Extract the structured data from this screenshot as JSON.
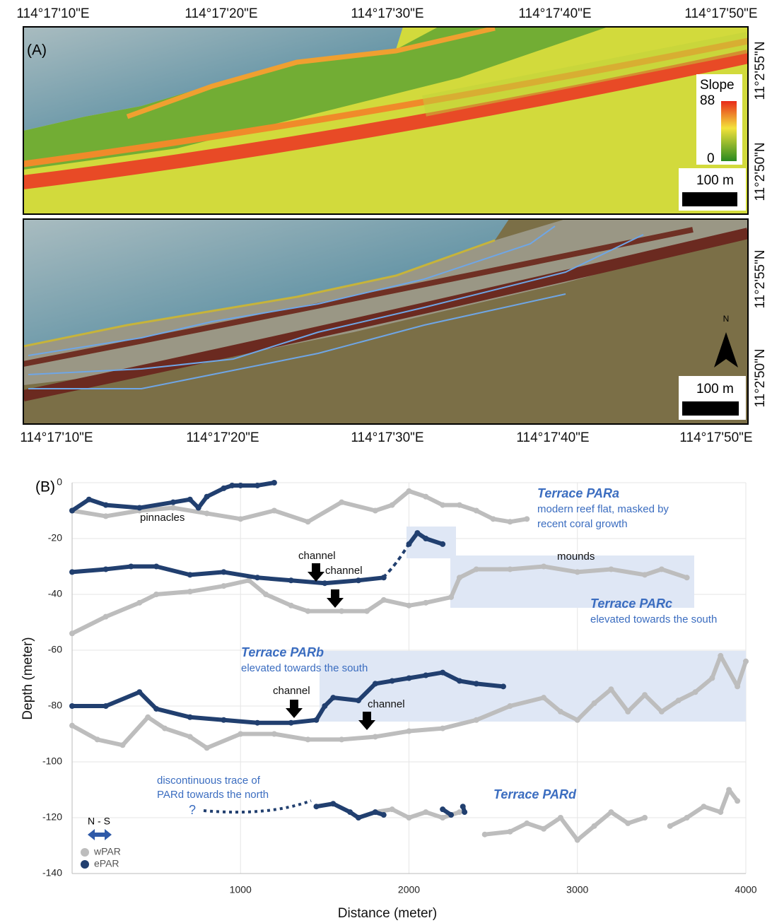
{
  "map": {
    "label": "(A)",
    "longitudes": [
      "114°17'10\"E",
      "114°17'20\"E",
      "114°17'30\"E",
      "114°17'40\"E",
      "114°17'50\"E"
    ],
    "latitudes": [
      "11°2'55\"N",
      "11°2'50\"N"
    ],
    "slope_title": "Slope",
    "slope_max": 88,
    "slope_min": 0,
    "scale": "100 m",
    "north": "N"
  },
  "chart_data": {
    "type": "line",
    "label": "(B)",
    "x_label": "Distance (meter)",
    "y_label": "Depth (meter)",
    "xlim": [
      0,
      4000
    ],
    "xticks": [
      1000,
      2000,
      3000,
      4000
    ],
    "ylim": [
      -140,
      0
    ],
    "yticks": [
      0,
      -20,
      -40,
      -60,
      -80,
      -100,
      -120,
      -140
    ],
    "grid": true,
    "direction": "N - S",
    "annotations": [
      "pinnacles",
      "channel",
      "channel",
      "channel",
      "channel",
      "mounds",
      "Terrace PARa",
      "modern reef flat, masked by",
      "recent coral growth",
      "Terrace PARc",
      "elevated towards the south",
      "Terrace PARb",
      "elevated towards the south",
      "discontinuous trace of",
      "PARd towards the north",
      "?",
      "Terrace PARd"
    ],
    "series": [
      {
        "name": "wPAR",
        "color": "#bdbdbd",
        "x": [
          0,
          200,
          400,
          600,
          800,
          1000,
          1200,
          1400,
          1600,
          1800,
          1900,
          2000,
          2100,
          2200,
          2300,
          2400,
          2500,
          2600,
          2700,
          null,
          0,
          200,
          400,
          500,
          700,
          900,
          1050,
          1150,
          1300,
          1400,
          1600,
          1750,
          1850,
          2000,
          2100,
          2250,
          2300,
          2400,
          2600,
          2800,
          3000,
          3200,
          3400,
          3500,
          3650,
          null,
          0,
          150,
          300,
          450,
          550,
          700,
          800,
          1000,
          1200,
          1400,
          1600,
          1800,
          2000,
          2200,
          2400,
          2600,
          2800,
          2900,
          3000,
          3100,
          3200,
          3300,
          3400,
          3500,
          3600,
          3700,
          3800,
          3850,
          3950,
          4000,
          null,
          1800,
          1900,
          2000,
          2100,
          2200,
          2300,
          null,
          2450,
          2600,
          2700,
          2800,
          2900,
          3000,
          3100,
          3200,
          3300,
          3400,
          null,
          3550,
          3650,
          3750,
          3850,
          3900,
          3950
        ],
        "values": [
          -10,
          -12,
          -10,
          -9,
          -11,
          -13,
          -10,
          -14,
          -7,
          -10,
          -8,
          -3,
          -5,
          -8,
          -8,
          -10,
          -13,
          -14,
          -13,
          null,
          -54,
          -48,
          -43,
          -40,
          -39,
          -37,
          -35,
          -40,
          -44,
          -46,
          -46,
          -46,
          -42,
          -44,
          -43,
          -41,
          -34,
          -31,
          -31,
          -30,
          -32,
          -31,
          -33,
          -31,
          -34,
          null,
          -87,
          -92,
          -94,
          -84,
          -88,
          -91,
          -95,
          -90,
          -90,
          -92,
          -92,
          -91,
          -89,
          -88,
          -85,
          -80,
          -77,
          -82,
          -85,
          -79,
          -74,
          -82,
          -76,
          -82,
          -78,
          -75,
          -70,
          -62,
          -73,
          -64,
          null,
          -118,
          -117,
          -120,
          -118,
          -120,
          -118,
          null,
          -126,
          -125,
          -122,
          -124,
          -120,
          -128,
          -123,
          -118,
          -122,
          -120,
          null,
          -123,
          -120,
          -116,
          -118,
          -110,
          -114
        ]
      },
      {
        "name": "ePAR",
        "color": "#213f6f",
        "x": [
          0,
          100,
          200,
          400,
          600,
          700,
          750,
          800,
          900,
          950,
          1000,
          1100,
          1200,
          null,
          2000,
          2050,
          2100,
          2200,
          null,
          0,
          200,
          350,
          500,
          700,
          900,
          1100,
          1300,
          1500,
          1700,
          1850,
          null,
          0,
          200,
          400,
          500,
          700,
          900,
          1100,
          1300,
          1450,
          1500,
          1550,
          1700,
          1800,
          1900,
          2000,
          2100,
          2200,
          2300,
          2400,
          2560,
          null,
          1450,
          1550,
          1650,
          1700,
          1800,
          1850,
          null,
          2200,
          2250,
          null,
          2320,
          2330
        ],
        "values": [
          -10,
          -6,
          -8,
          -9,
          -7,
          -6,
          -9,
          -5,
          -2,
          -1,
          -1,
          -1,
          0,
          null,
          -22,
          -18,
          -20,
          -22,
          null,
          -32,
          -31,
          -30,
          -30,
          -33,
          -32,
          -34,
          -35,
          -36,
          -35,
          -34,
          null,
          -80,
          -80,
          -75,
          -81,
          -84,
          -85,
          -86,
          -86,
          -85,
          -80,
          -77,
          -78,
          -72,
          -71,
          -70,
          -69,
          -68,
          -71,
          -72,
          -73,
          null,
          -116,
          -115,
          -118,
          -120,
          -118,
          -119,
          null,
          -117,
          -119,
          null,
          -116,
          -118
        ]
      }
    ]
  }
}
